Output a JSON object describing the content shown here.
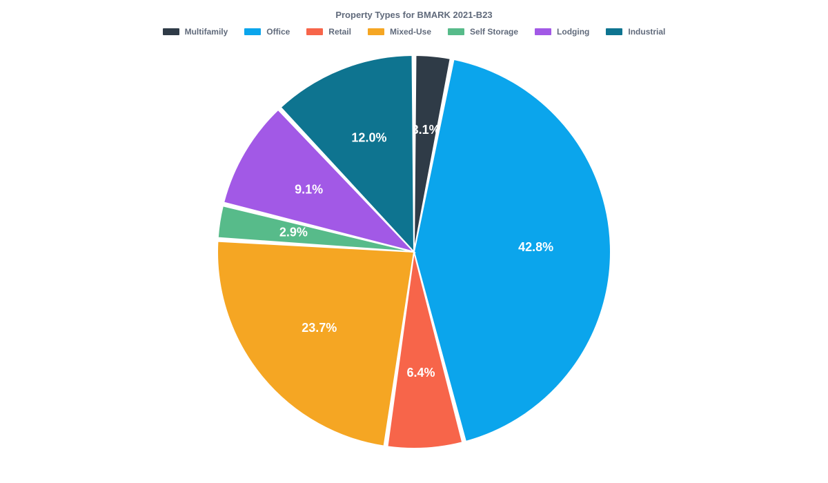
{
  "chart": {
    "type": "pie",
    "title": "Property Types for BMARK 2021-B23",
    "title_fontsize": 13,
    "title_color": "#606a7b",
    "background_color": "#ffffff",
    "slice_gap_deg": 1.0,
    "stroke_color": "#ffffff",
    "stroke_width": 2,
    "radius": 285,
    "label_fontsize": 18,
    "label_color": "#ffffff",
    "label_radius_factor": 0.62,
    "legend_swatch_w": 24,
    "legend_swatch_h": 10,
    "legend_fontsize": 12,
    "legend_color": "#606a7b",
    "slices": [
      {
        "label": "Multifamily",
        "value": 3.1,
        "color": "#2f3b47",
        "display": "3.1%"
      },
      {
        "label": "Office",
        "value": 42.8,
        "color": "#0ba5ec",
        "display": "42.8%"
      },
      {
        "label": "Retail",
        "value": 6.4,
        "color": "#f7654a",
        "display": "6.4%"
      },
      {
        "label": "Mixed-Use",
        "value": 23.7,
        "color": "#f5a623",
        "display": "23.7%"
      },
      {
        "label": "Self Storage",
        "value": 2.9,
        "color": "#57bb8a",
        "display": "2.9%"
      },
      {
        "label": "Lodging",
        "value": 9.1,
        "color": "#a259e6",
        "display": "9.1%"
      },
      {
        "label": "Industrial",
        "value": 12.0,
        "color": "#0e7490",
        "display": "12.0%"
      }
    ]
  }
}
